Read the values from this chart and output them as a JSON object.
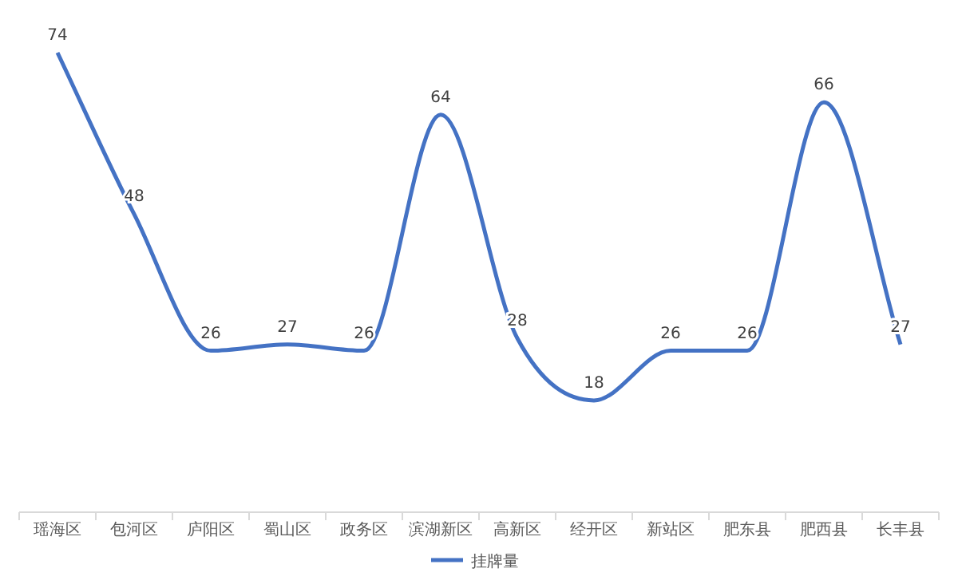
{
  "chart_data": {
    "type": "line",
    "categories": [
      "瑶海区",
      "包河区",
      "庐阳区",
      "蜀山区",
      "政务区",
      "滨湖新区",
      "高新区",
      "经开区",
      "新站区",
      "肥东县",
      "肥西县",
      "长丰县"
    ],
    "series": [
      {
        "name": "挂牌量",
        "color": "#4472c4",
        "values": [
          74,
          48,
          26,
          27,
          26,
          64,
          28,
          18,
          26,
          26,
          66,
          27
        ]
      }
    ],
    "tick_labels": "x",
    "data_labels": true,
    "legend": "bottom",
    "marker": "none",
    "line_style": "solid"
  }
}
